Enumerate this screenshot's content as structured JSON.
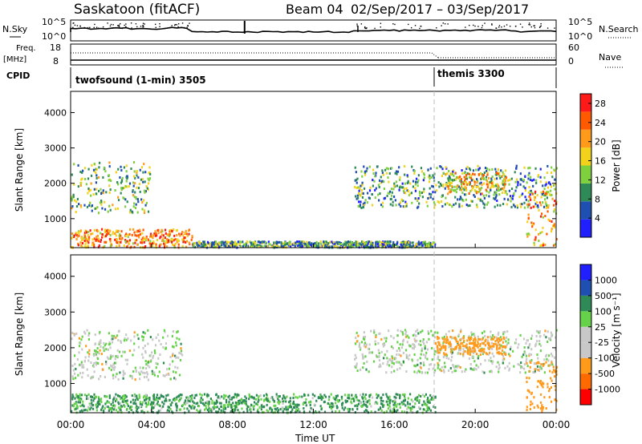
{
  "header": {
    "station": "Saskatoon (fitACF)",
    "beam": "Beam 04",
    "date_range": "02/Sep/2017 – 03/Sep/2017"
  },
  "top_panels": {
    "nsky_label": "N.Sky",
    "nsky_ticks": [
      "10^5",
      "10^0"
    ],
    "nsky_right_ticks": [
      "10^5",
      "10^0"
    ],
    "nsearch_label": "N.Search",
    "freq_label_1": "Freq.",
    "freq_label_2": "[MHz]",
    "freq_ticks": [
      "18",
      "8"
    ],
    "nave_ticks": [
      "60",
      "0"
    ],
    "nave_label": "Nave",
    "cpid_label": "CPID",
    "cpid_segments": [
      {
        "name": "twofsound (1-min) 3505",
        "start_hour": 0
      },
      {
        "name": "themis 3300",
        "start_hour": 18
      }
    ]
  },
  "colors": {
    "power_scale": [
      "#2020ff",
      "#1f4fb0",
      "#2e8b57",
      "#7fd03f",
      "#f2d21b",
      "#ff9a1a",
      "#ff5a00",
      "#ff1a1a"
    ],
    "velocity_scale": [
      "#ff0000",
      "#ff6a00",
      "#ff9a1a",
      "#c8c8c8",
      "#c8c8c8",
      "#66d24a",
      "#2e8b57",
      "#1f4fb0",
      "#2020ff"
    ]
  },
  "chart_data": [
    {
      "type": "heatmap",
      "title": "Power",
      "xlabel": "Time UT",
      "ylabel": "Slant Range [km]",
      "xlim": [
        0,
        24
      ],
      "ylim": [
        180,
        4600
      ],
      "x_ticks": [
        "00:00",
        "04:00",
        "08:00",
        "12:00",
        "16:00",
        "20:00",
        "00:00"
      ],
      "y_ticks": [
        1000,
        2000,
        3000,
        4000
      ],
      "colorbar": {
        "label": "Power [dB]",
        "ticks": [
          4,
          8,
          12,
          16,
          20,
          24,
          28
        ],
        "range": [
          0,
          30
        ]
      },
      "echo_regions": [
        {
          "t_start": 0.0,
          "t_end": 3.9,
          "range_start": 1150,
          "range_end": 2600,
          "level": 12
        },
        {
          "t_start": 0.0,
          "t_end": 6.0,
          "range_start": 180,
          "range_end": 700,
          "level": 22
        },
        {
          "t_start": 6.0,
          "t_end": 18.0,
          "range_start": 180,
          "range_end": 350,
          "level": 10
        },
        {
          "t_start": 14.0,
          "t_end": 24.0,
          "range_start": 1300,
          "range_end": 2500,
          "level": 10
        },
        {
          "t_start": 18.5,
          "t_end": 21.5,
          "range_start": 1700,
          "range_end": 2300,
          "level": 18
        },
        {
          "t_start": 22.5,
          "t_end": 24.0,
          "range_start": 200,
          "range_end": 1800,
          "level": 20
        }
      ]
    },
    {
      "type": "heatmap",
      "title": "Velocity",
      "xlabel": "Time UT",
      "ylabel": "Slant Range [km]",
      "xlim": [
        0,
        24
      ],
      "ylim": [
        180,
        4600
      ],
      "x_ticks": [
        "00:00",
        "04:00",
        "08:00",
        "12:00",
        "16:00",
        "20:00",
        "00:00"
      ],
      "y_ticks": [
        1000,
        2000,
        3000,
        4000
      ],
      "colorbar": {
        "label": "Velocity [m s⁻¹]",
        "ticks": [
          1000,
          500,
          100,
          25,
          -25,
          -100,
          -500,
          -1000
        ]
      },
      "echo_regions": [
        {
          "t_start": 0.0,
          "t_end": 5.5,
          "range_start": 1100,
          "range_end": 2500,
          "velocity": 0
        },
        {
          "t_start": 0.0,
          "t_end": 18.0,
          "range_start": 180,
          "range_end": 700,
          "velocity": 120
        },
        {
          "t_start": 14.0,
          "t_end": 24.0,
          "range_start": 1300,
          "range_end": 2500,
          "velocity": 0
        },
        {
          "t_start": 18.0,
          "t_end": 21.5,
          "range_start": 1800,
          "range_end": 2300,
          "velocity": -300
        },
        {
          "t_start": 22.5,
          "t_end": 24.0,
          "range_start": 200,
          "range_end": 1600,
          "velocity": -250
        }
      ]
    }
  ]
}
